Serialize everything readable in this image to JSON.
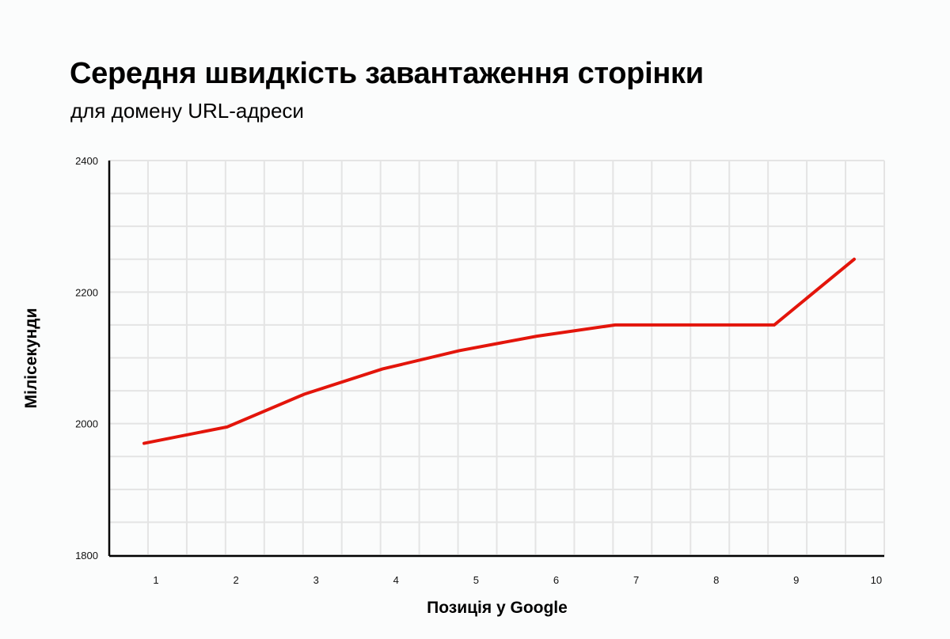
{
  "header": {
    "title": "Середня швидкість завантаження сторінки",
    "subtitle": "для домену URL-адреси"
  },
  "axes": {
    "xlabel": "Позиція у Google",
    "ylabel": "Мілісекунди"
  },
  "colors": {
    "line": "#e3150b",
    "grid": "#e4e4e4",
    "axis": "#000000",
    "background": "#fbfcfc"
  },
  "chart_data": {
    "type": "line",
    "title": "Середня швидкість завантаження сторінки",
    "subtitle": "для домену URL-адреси",
    "xlabel": "Позиція у Google",
    "ylabel": "Мілісекунди",
    "categories": [
      "1",
      "2",
      "3",
      "4",
      "5",
      "6",
      "7",
      "8",
      "9",
      "10"
    ],
    "series": [
      {
        "name": "Середня швидкість завантаження",
        "values": [
          1970,
          1995,
          2045,
          2083,
          2111,
          2133,
          2150,
          2150,
          2150,
          2250
        ]
      }
    ],
    "yticks": [
      1800,
      2000,
      2200,
      2400
    ],
    "ylim": [
      1800,
      2400
    ],
    "grid": true,
    "legend": "none"
  }
}
